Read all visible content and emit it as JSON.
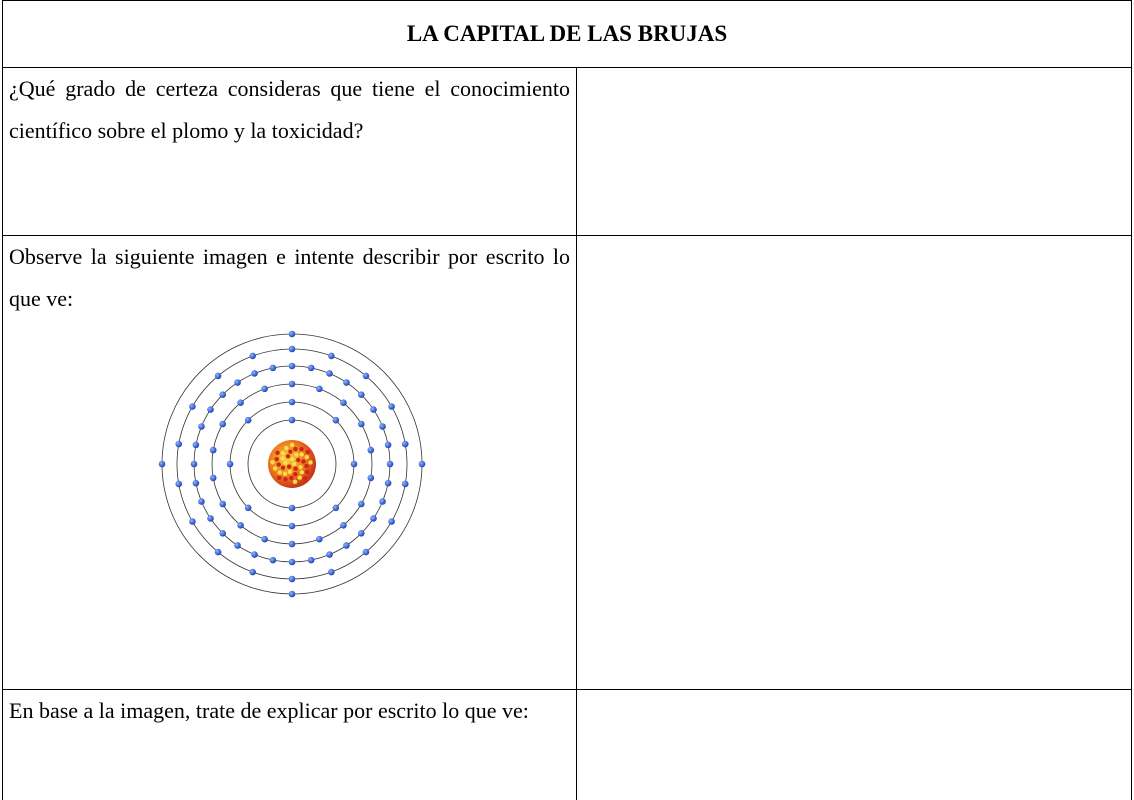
{
  "table": {
    "title": "LA CAPITAL DE LAS BRUJAS",
    "rows": [
      [
        "¿Qué grado de certeza consideras que tiene el conocimiento científico sobre el plomo y la toxicidad?"
      ],
      [
        "Observe la siguiente imagen e intente describir por escrito lo que ve:"
      ],
      [
        "En base a la imagen, trate de explicar por escrito lo que ve:"
      ]
    ]
  }
}
